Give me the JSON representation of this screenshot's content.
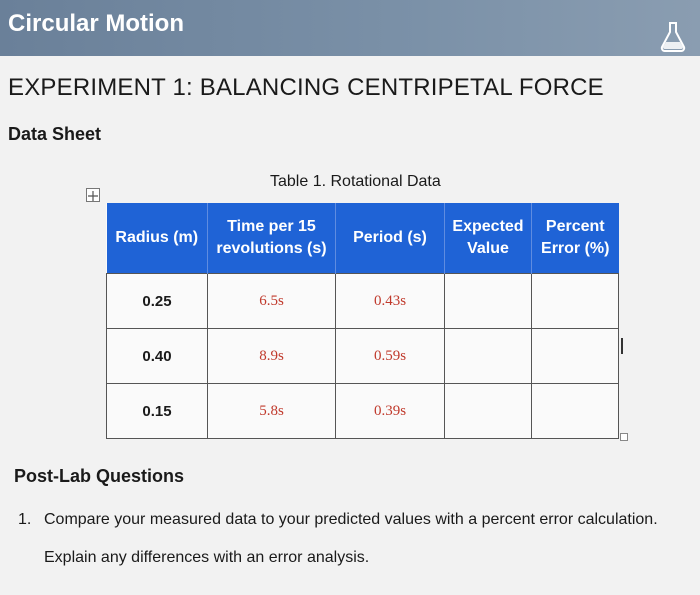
{
  "header": {
    "title": "Circular Motion",
    "icon": "flask-icon"
  },
  "experiment_title": "EXPERIMENT 1: BALANCING CENTRIPETAL FORCE",
  "section_title": "Data Sheet",
  "table": {
    "caption": "Table 1. Rotational Data",
    "header_color": "#1f63d6",
    "measured_text_color": "#c0392b",
    "columns": [
      {
        "line1": "Radius (m)",
        "line2": ""
      },
      {
        "line1": "Time per 15",
        "line2": "revolutions (s)"
      },
      {
        "line1": "Period (s)",
        "line2": ""
      },
      {
        "line1": "Expected",
        "line2": "Value"
      },
      {
        "line1": "Percent",
        "line2": "Error (%)"
      }
    ],
    "rows": [
      {
        "radius": "0.25",
        "time": "6.5s",
        "period": "0.43s",
        "expected": "",
        "percent_error": ""
      },
      {
        "radius": "0.40",
        "time": "8.9s",
        "period": "0.59s",
        "expected": "",
        "percent_error": ""
      },
      {
        "radius": "0.15",
        "time": "5.8s",
        "period": "0.39s",
        "expected": "",
        "percent_error": ""
      }
    ]
  },
  "post_lab": {
    "title": "Post-Lab Questions",
    "questions": [
      {
        "number": "1.",
        "line1": "Compare your measured data to your predicted values with a percent error calculation.",
        "line2": "Explain any differences with an error analysis."
      }
    ]
  }
}
